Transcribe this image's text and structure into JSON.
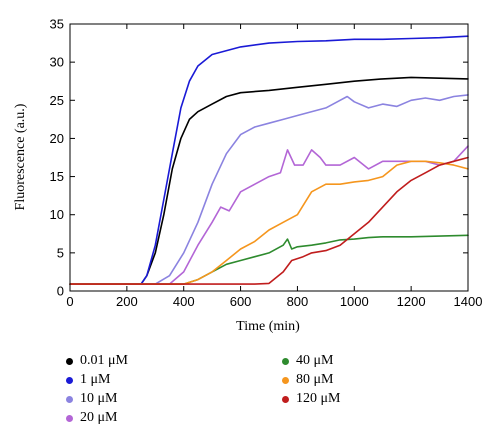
{
  "chart_data": {
    "type": "line",
    "xlabel": "Time (min)",
    "ylabel": "Fluorescence (a.u.)",
    "xlim": [
      0,
      1400
    ],
    "ylim": [
      0,
      35
    ],
    "xticks": [
      "0",
      "200",
      "400",
      "600",
      "800",
      "1000",
      "1200",
      "1400"
    ],
    "yticks": [
      "0",
      "5",
      "10",
      "15",
      "20",
      "25",
      "30",
      "35"
    ],
    "grid": false,
    "legend_placement": "below",
    "series": [
      {
        "name": "0.01 μM",
        "color": "#000000",
        "points": [
          [
            0,
            0.9
          ],
          [
            250,
            0.9
          ],
          [
            270,
            2
          ],
          [
            300,
            5
          ],
          [
            330,
            10
          ],
          [
            360,
            16
          ],
          [
            390,
            20
          ],
          [
            420,
            22.5
          ],
          [
            450,
            23.5
          ],
          [
            500,
            24.5
          ],
          [
            550,
            25.5
          ],
          [
            600,
            26
          ],
          [
            700,
            26.3
          ],
          [
            800,
            26.7
          ],
          [
            900,
            27.1
          ],
          [
            1000,
            27.5
          ],
          [
            1100,
            27.8
          ],
          [
            1200,
            28
          ],
          [
            1300,
            27.9
          ],
          [
            1400,
            27.8
          ]
        ]
      },
      {
        "name": "1 μM",
        "color": "#1a1ad6",
        "points": [
          [
            0,
            0.9
          ],
          [
            250,
            0.9
          ],
          [
            270,
            2
          ],
          [
            300,
            6
          ],
          [
            330,
            12
          ],
          [
            360,
            18
          ],
          [
            390,
            24
          ],
          [
            420,
            27.5
          ],
          [
            450,
            29.5
          ],
          [
            500,
            31
          ],
          [
            600,
            32
          ],
          [
            700,
            32.5
          ],
          [
            800,
            32.7
          ],
          [
            900,
            32.8
          ],
          [
            1000,
            33
          ],
          [
            1100,
            33
          ],
          [
            1200,
            33.1
          ],
          [
            1300,
            33.2
          ],
          [
            1400,
            33.4
          ]
        ]
      },
      {
        "name": "10 μM",
        "color": "#8b83e0",
        "points": [
          [
            0,
            0.9
          ],
          [
            300,
            0.9
          ],
          [
            350,
            2
          ],
          [
            400,
            5
          ],
          [
            450,
            9
          ],
          [
            500,
            14
          ],
          [
            550,
            18
          ],
          [
            600,
            20.5
          ],
          [
            650,
            21.5
          ],
          [
            700,
            22
          ],
          [
            750,
            22.5
          ],
          [
            800,
            23
          ],
          [
            900,
            24
          ],
          [
            950,
            25
          ],
          [
            975,
            25.5
          ],
          [
            1000,
            24.8
          ],
          [
            1050,
            24
          ],
          [
            1100,
            24.5
          ],
          [
            1150,
            24.2
          ],
          [
            1200,
            25
          ],
          [
            1250,
            25.3
          ],
          [
            1300,
            25
          ],
          [
            1350,
            25.5
          ],
          [
            1400,
            25.7
          ]
        ]
      },
      {
        "name": "20 μM",
        "color": "#b366d6",
        "points": [
          [
            0,
            0.9
          ],
          [
            350,
            0.9
          ],
          [
            400,
            2.5
          ],
          [
            450,
            6
          ],
          [
            500,
            9
          ],
          [
            530,
            11
          ],
          [
            560,
            10.5
          ],
          [
            600,
            13
          ],
          [
            650,
            14
          ],
          [
            700,
            15
          ],
          [
            740,
            15.5
          ],
          [
            765,
            18.5
          ],
          [
            790,
            16.5
          ],
          [
            820,
            16.5
          ],
          [
            850,
            18.5
          ],
          [
            880,
            17.5
          ],
          [
            900,
            16.5
          ],
          [
            950,
            16.5
          ],
          [
            1000,
            17.5
          ],
          [
            1050,
            16
          ],
          [
            1100,
            17
          ],
          [
            1150,
            17
          ],
          [
            1200,
            17
          ],
          [
            1250,
            17
          ],
          [
            1300,
            16.5
          ],
          [
            1350,
            17
          ],
          [
            1400,
            19
          ]
        ]
      },
      {
        "name": "40 μM",
        "color": "#2e8b2e",
        "points": [
          [
            0,
            0.9
          ],
          [
            400,
            0.9
          ],
          [
            450,
            1.5
          ],
          [
            500,
            2.5
          ],
          [
            550,
            3.5
          ],
          [
            600,
            4
          ],
          [
            650,
            4.5
          ],
          [
            700,
            5
          ],
          [
            750,
            6
          ],
          [
            765,
            6.8
          ],
          [
            780,
            5.5
          ],
          [
            800,
            5.8
          ],
          [
            850,
            6
          ],
          [
            900,
            6.3
          ],
          [
            950,
            6.7
          ],
          [
            1000,
            6.8
          ],
          [
            1050,
            7
          ],
          [
            1100,
            7.1
          ],
          [
            1200,
            7.1
          ],
          [
            1300,
            7.2
          ],
          [
            1400,
            7.3
          ]
        ]
      },
      {
        "name": "80 μM",
        "color": "#f5961e",
        "points": [
          [
            0,
            0.9
          ],
          [
            400,
            0.9
          ],
          [
            450,
            1.5
          ],
          [
            500,
            2.5
          ],
          [
            550,
            4
          ],
          [
            600,
            5.5
          ],
          [
            650,
            6.5
          ],
          [
            700,
            8
          ],
          [
            750,
            9
          ],
          [
            800,
            10
          ],
          [
            850,
            13
          ],
          [
            900,
            14
          ],
          [
            950,
            14
          ],
          [
            1000,
            14.3
          ],
          [
            1050,
            14.5
          ],
          [
            1100,
            15
          ],
          [
            1150,
            16.5
          ],
          [
            1200,
            17
          ],
          [
            1250,
            17
          ],
          [
            1300,
            16.8
          ],
          [
            1350,
            16.5
          ],
          [
            1400,
            16
          ]
        ]
      },
      {
        "name": "120 μM",
        "color": "#c01d1d",
        "points": [
          [
            0,
            0.9
          ],
          [
            650,
            0.9
          ],
          [
            700,
            1
          ],
          [
            750,
            2.5
          ],
          [
            780,
            4
          ],
          [
            820,
            4.5
          ],
          [
            850,
            5
          ],
          [
            900,
            5.3
          ],
          [
            950,
            6
          ],
          [
            1000,
            7.5
          ],
          [
            1050,
            9
          ],
          [
            1100,
            11
          ],
          [
            1150,
            13
          ],
          [
            1200,
            14.5
          ],
          [
            1250,
            15.5
          ],
          [
            1300,
            16.5
          ],
          [
            1350,
            17
          ],
          [
            1400,
            17.5
          ]
        ]
      }
    ]
  }
}
